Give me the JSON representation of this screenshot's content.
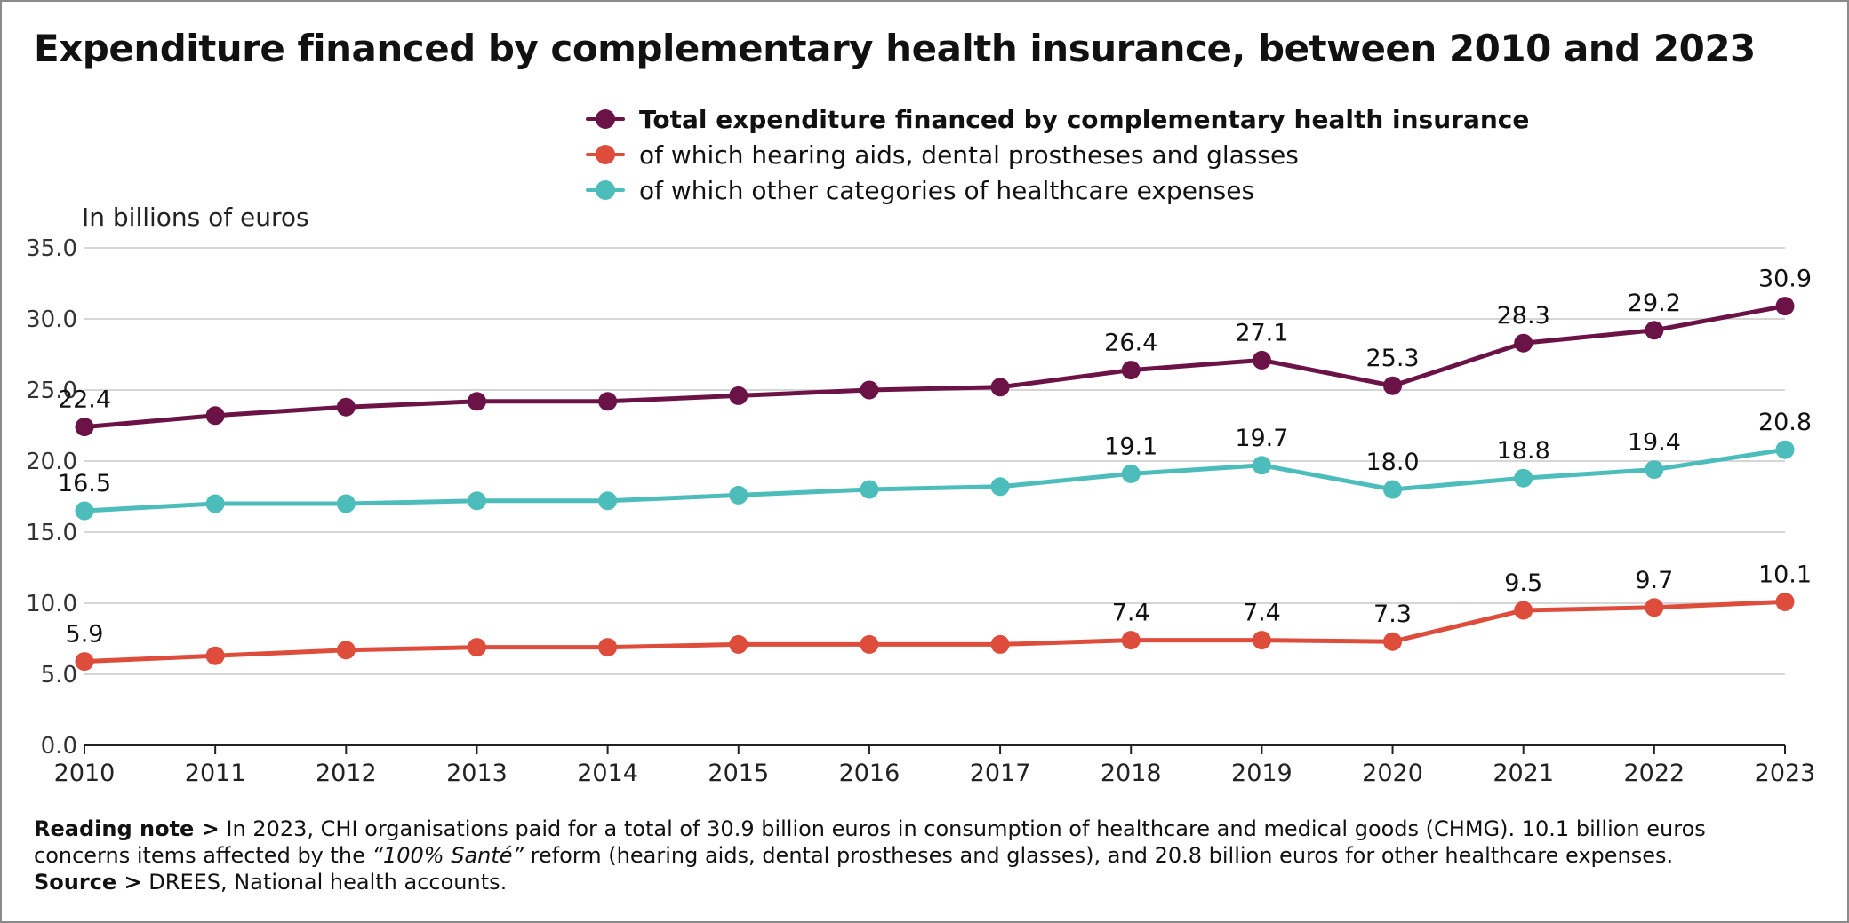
{
  "title": "Expenditure financed by complementary health insurance, between 2010 and 2023",
  "unit_label": "In billions of euros",
  "notes": {
    "reading_label": "Reading note >",
    "reading_text_1": " In 2023, CHI organisations paid for a total of 30.9 billion euros in consumption of healthcare and medical goods (CHMG). 10.1 billion euros concerns items affected by the ",
    "reading_emph": "“100% Santé”",
    "reading_text_2": " reform (hearing aids, dental prostheses and glasses), and 20.8 billion euros for other healthcare expenses.",
    "source_label": "Source >",
    "source_text": " DREES, National health accounts."
  },
  "chart_data": {
    "type": "line",
    "title": "Expenditure financed by complementary health insurance, between 2010 and 2023",
    "ylabel": "In billions of euros",
    "xlabel": "",
    "ylim": [
      0,
      35
    ],
    "yticks": [
      "0.0",
      "5.0",
      "10.0",
      "15.0",
      "20.0",
      "25.0",
      "30.0",
      "35.0"
    ],
    "grid": true,
    "legend_position": "top-center",
    "x": [
      "2010",
      "2011",
      "2012",
      "2013",
      "2014",
      "2015",
      "2016",
      "2017",
      "2018",
      "2019",
      "2020",
      "2021",
      "2022",
      "2023"
    ],
    "series": [
      {
        "name": "Total expenditure financed by complementary health insurance",
        "color": "#6b1347",
        "values": [
          22.4,
          23.2,
          23.8,
          24.2,
          24.2,
          24.6,
          25.0,
          25.2,
          26.4,
          27.1,
          25.3,
          28.3,
          29.2,
          30.9
        ],
        "labels": [
          "22.4",
          "",
          "",
          "",
          "",
          "",
          "",
          "",
          "26.4",
          "27.1",
          "25.3",
          "28.3",
          "29.2",
          "30.9"
        ]
      },
      {
        "name": "of which hearing aids, dental prostheses and glasses",
        "color": "#de4c3c",
        "values": [
          5.9,
          6.3,
          6.7,
          6.9,
          6.9,
          7.1,
          7.1,
          7.1,
          7.4,
          7.4,
          7.3,
          9.5,
          9.7,
          10.1
        ],
        "labels": [
          "5.9",
          "",
          "",
          "",
          "",
          "",
          "",
          "",
          "7.4",
          "7.4",
          "7.3",
          "9.5",
          "9.7",
          "10.1"
        ]
      },
      {
        "name": "of which other categories of healthcare expenses",
        "color": "#4dbdbb",
        "values": [
          16.5,
          17.0,
          17.0,
          17.2,
          17.2,
          17.6,
          18.0,
          18.2,
          19.1,
          19.7,
          18.0,
          18.8,
          19.4,
          20.8
        ],
        "labels": [
          "16.5",
          "",
          "",
          "",
          "",
          "",
          "",
          "",
          "19.1",
          "19.7",
          "18.0",
          "18.8",
          "19.4",
          "20.8"
        ]
      }
    ]
  }
}
